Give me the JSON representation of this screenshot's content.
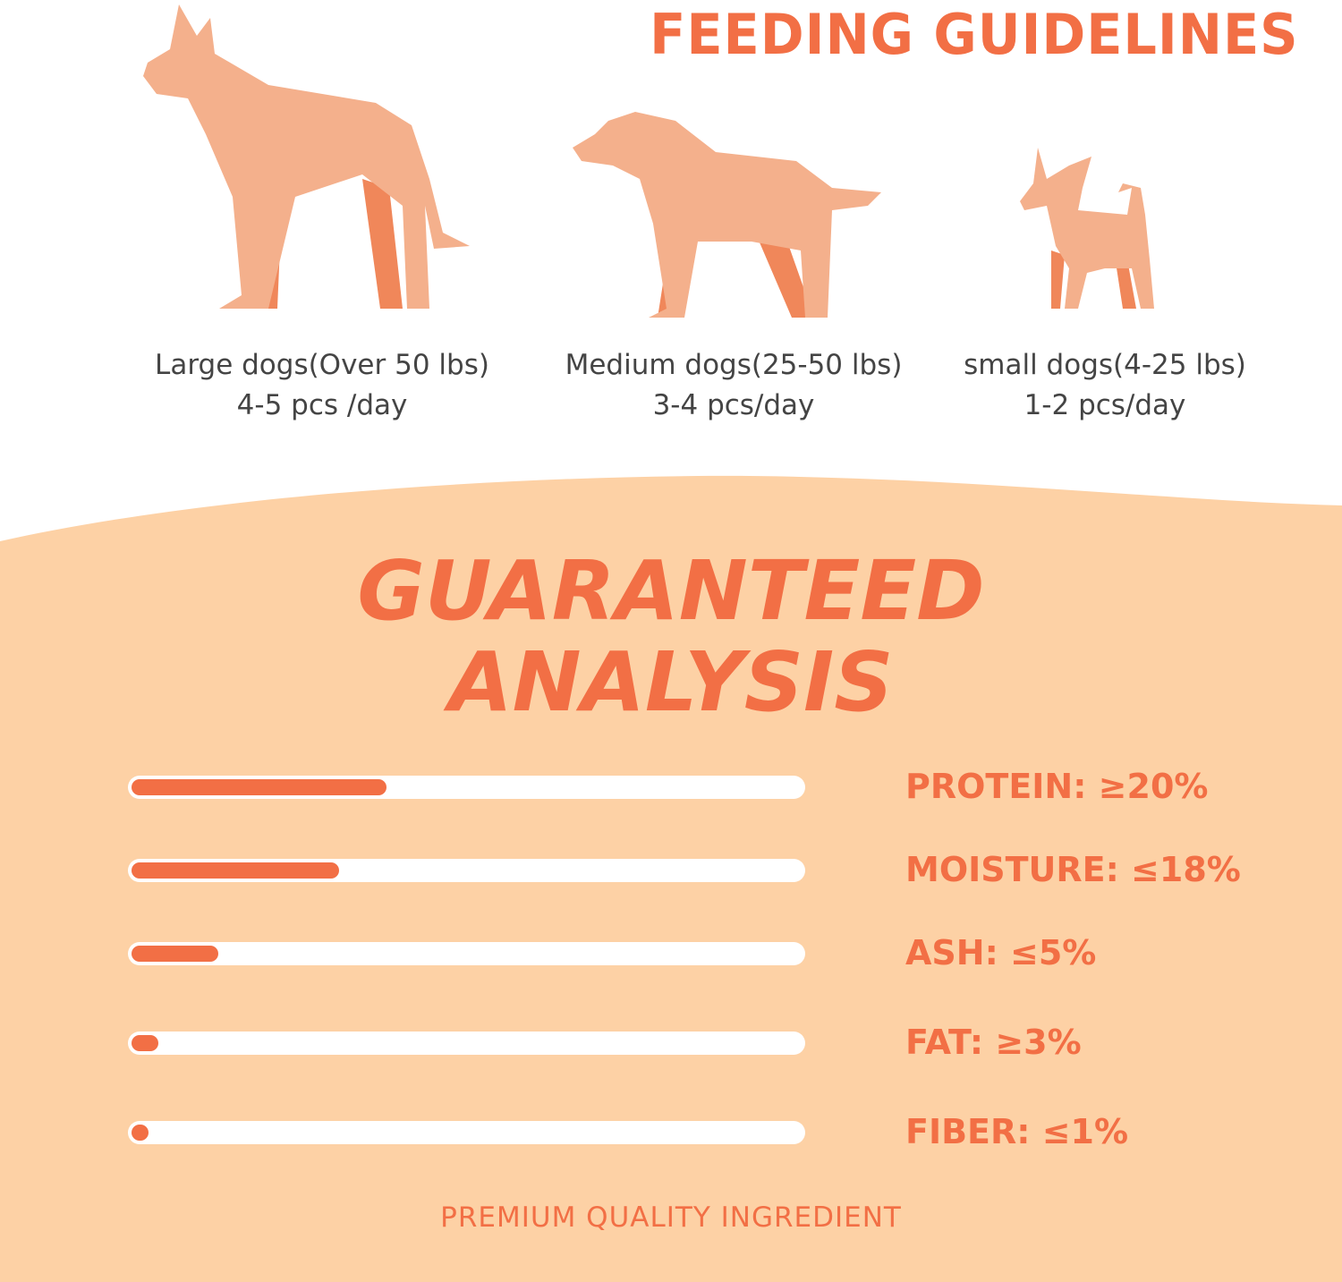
{
  "colors": {
    "accent": "#F26F45",
    "background": "#FDD1A5",
    "silhouette": "#F4B08C",
    "silhouette_shadow": "#F0875A"
  },
  "feeding": {
    "title": "FEEDING GUIDELINES",
    "dogs": [
      {
        "size": "Large dogs(Over 50 lbs)",
        "amount": "4-5 pcs /day"
      },
      {
        "size": "Medium dogs(25-50 lbs)",
        "amount": "3-4 pcs/day"
      },
      {
        "size": "small dogs(4-25 lbs)",
        "amount": "1-2 pcs/day"
      }
    ]
  },
  "analysis": {
    "title_line1": "GUARANTEED",
    "title_line2": "ANALYSIS",
    "items": [
      {
        "label": "PROTEIN: ≥20%",
        "fill": 0.38
      },
      {
        "label": "MOISTURE: ≤18%",
        "fill": 0.31
      },
      {
        "label": "ASH: ≤5%",
        "fill": 0.13
      },
      {
        "label": "FAT: ≥3%",
        "fill": 0.04
      },
      {
        "label": "FIBER: ≤1%",
        "fill": 0.025
      }
    ]
  },
  "footer": "PREMIUM QUALITY INGREDIENT"
}
